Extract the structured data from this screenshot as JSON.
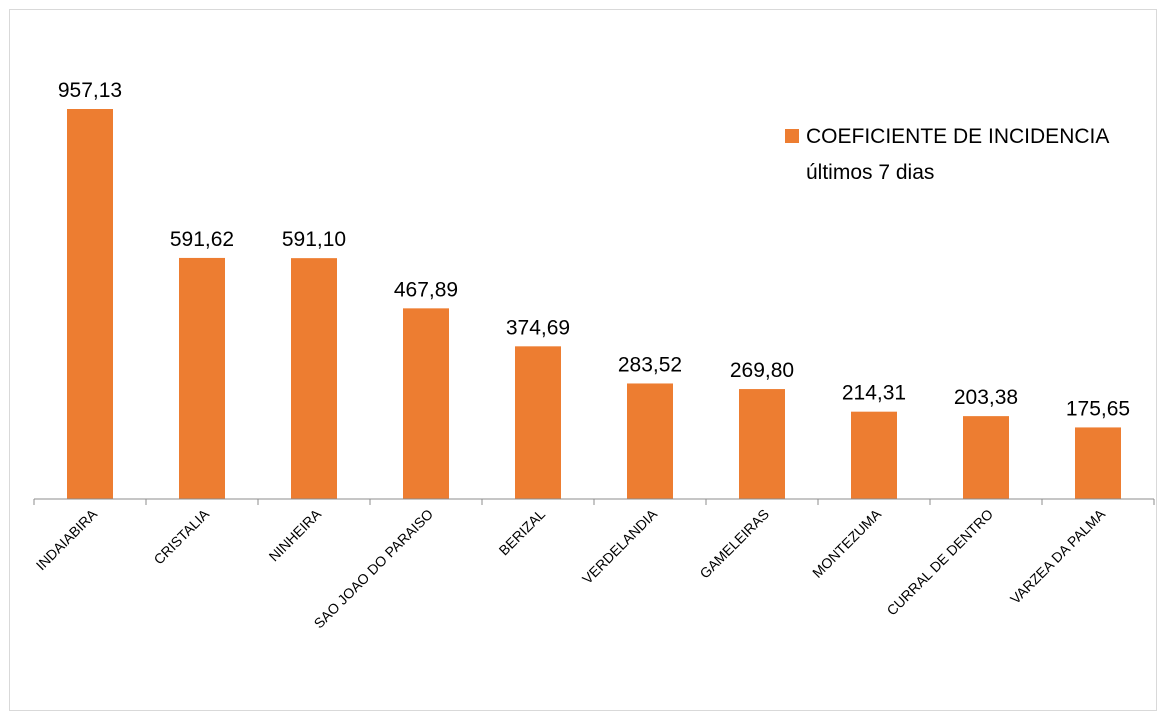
{
  "colors": {
    "bar": "#ED7D31",
    "axis": "#8c8c8c",
    "frame": "#d9d9d9"
  },
  "legend": {
    "line1": "COEFICIENTE DE INCIDENCIA",
    "line2": "últimos 7 dias"
  },
  "chart_data": {
    "type": "bar",
    "categories": [
      "INDAIABIRA",
      "CRISTALIA",
      "NINHEIRA",
      "SAO JOAO DO PARAISO",
      "BERIZAL",
      "VERDELANDIA",
      "GAMELEIRAS",
      "MONTEZUMA",
      "CURRAL DE DENTRO",
      "VARZEA DA PALMA"
    ],
    "values": [
      957.13,
      591.62,
      591.1,
      467.89,
      374.69,
      283.52,
      269.8,
      214.31,
      203.38,
      175.65
    ],
    "value_labels": [
      "957,13",
      "591,62",
      "591,10",
      "467,89",
      "374,69",
      "283,52",
      "269,80",
      "214,31",
      "203,38",
      "175,65"
    ],
    "series": [
      {
        "name": "COEFICIENTE DE INCIDENCIA últimos 7 dias"
      }
    ],
    "ylim": [
      0,
      957.13
    ],
    "grid": false,
    "legend_position": "top-right"
  }
}
